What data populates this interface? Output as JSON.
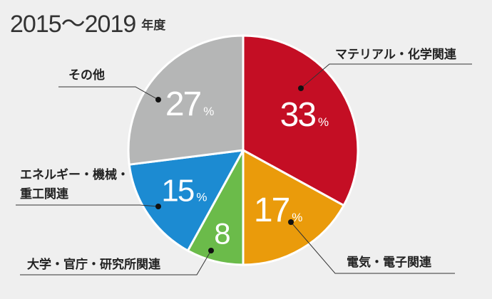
{
  "title": {
    "main": "2015～2019",
    "suffix": "年度"
  },
  "chart_data": {
    "type": "pie",
    "title": "2015～2019 年度",
    "slices": [
      {
        "label": "マテリアル・化学関連",
        "value": 33,
        "display": "33",
        "unit": "%",
        "color": "#c40e24"
      },
      {
        "label": "電気・電子関連",
        "value": 17,
        "display": "17",
        "unit": "%",
        "color": "#ea9b0b"
      },
      {
        "label": "大学・官庁・研究所関連",
        "value": 8,
        "display": "8",
        "unit": "",
        "color": "#6bbb4a"
      },
      {
        "label": "エネルギー・機械・重工関連",
        "value": 15,
        "display": "15",
        "unit": "%",
        "color": "#1c8bd2"
      },
      {
        "label": "その他",
        "value": 27,
        "display": "27",
        "unit": "%",
        "color": "#b5b6b6"
      }
    ]
  },
  "labels": {
    "materials": "マテリアル・化学関連",
    "electric": "電気・電子関連",
    "university": "大学・官庁・研究所関連",
    "energy_line1": "エネルギー・機械・",
    "energy_line2": "重工関連",
    "other": "その他"
  }
}
